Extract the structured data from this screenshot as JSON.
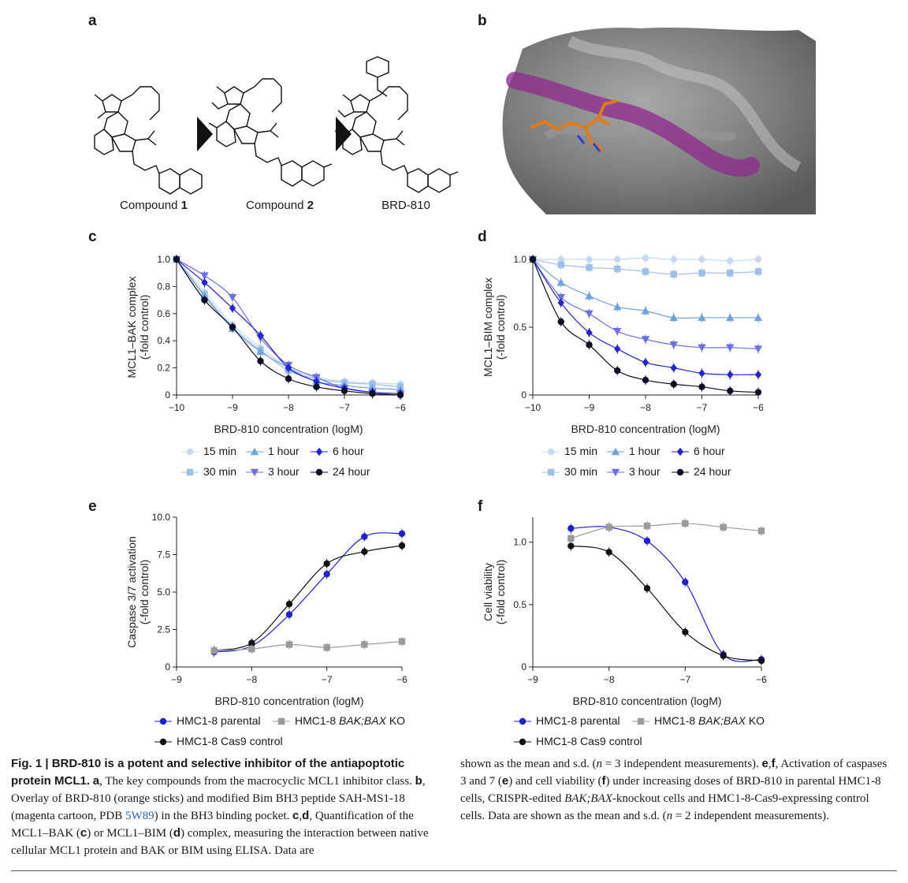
{
  "panels": {
    "a": "a",
    "b": "b",
    "c": "c",
    "d": "d",
    "e": "e",
    "f": "f"
  },
  "compounds": [
    {
      "name": "Compound ",
      "bold": "1"
    },
    {
      "name": "Compound ",
      "bold": "2"
    },
    {
      "name": "BRD-810",
      "bold": ""
    }
  ],
  "colors": {
    "t15": "#c6d9f0",
    "t30": "#9ec0e8",
    "t1h": "#6da3e0",
    "t3h": "#6e6ee6",
    "t6h": "#2323d8",
    "t24h": "#0d0d26",
    "parental": "#1f1fd6",
    "ko": "#9a9a9a",
    "cas9": "#111111"
  },
  "chart_data": [
    {
      "type": "line",
      "id": "c",
      "xlabel": "BRD-810 concentration (logM)",
      "ylabel_line1": "MCL1–BAK complex",
      "ylabel_line2": "(-fold control)",
      "xlim": [
        -10,
        -6
      ],
      "ylim": [
        0,
        1.0
      ],
      "xticks": [
        "−10",
        "−9",
        "−8",
        "−7",
        "−6"
      ],
      "yticks": [
        "0",
        "0.2",
        "0.4",
        "0.6",
        "0.8",
        "1.0"
      ],
      "x": [
        -10,
        -9.5,
        -9,
        -8.5,
        -8,
        -7.5,
        -7,
        -6.5,
        -6
      ],
      "series": [
        {
          "name": "15 min",
          "color": "#c6d9f0",
          "marker": "circle",
          "values": [
            1.0,
            0.76,
            0.52,
            0.35,
            0.2,
            0.13,
            0.1,
            0.09,
            0.08
          ]
        },
        {
          "name": "30 min",
          "color": "#9ec0e8",
          "marker": "square",
          "values": [
            1.0,
            0.74,
            0.5,
            0.33,
            0.18,
            0.12,
            0.09,
            0.08,
            0.06
          ]
        },
        {
          "name": "1 hour",
          "color": "#6da3e0",
          "marker": "triangle-up",
          "values": [
            1.0,
            0.73,
            0.49,
            0.32,
            0.2,
            0.1,
            0.07,
            0.05,
            0.04
          ]
        },
        {
          "name": "3 hour",
          "color": "#6e6ee6",
          "marker": "triangle-down",
          "values": [
            1.0,
            0.88,
            0.72,
            0.42,
            0.22,
            0.13,
            0.05,
            0.02,
            0.01
          ]
        },
        {
          "name": "6 hour",
          "color": "#2323d8",
          "marker": "diamond",
          "values": [
            1.0,
            0.83,
            0.64,
            0.44,
            0.2,
            0.1,
            0.05,
            0.02,
            0.01
          ]
        },
        {
          "name": "24 hour",
          "color": "#0d0d26",
          "marker": "circle",
          "values": [
            1.0,
            0.7,
            0.5,
            0.25,
            0.12,
            0.06,
            0.03,
            0.01,
            0.0
          ]
        }
      ],
      "legend": [
        {
          "name": "15 min",
          "color": "#c6d9f0",
          "marker": "circle"
        },
        {
          "name": "1 hour",
          "color": "#6da3e0",
          "marker": "triangle-up"
        },
        {
          "name": "6 hour",
          "color": "#2323d8",
          "marker": "diamond"
        },
        {
          "name": "30 min",
          "color": "#9ec0e8",
          "marker": "square"
        },
        {
          "name": "3 hour",
          "color": "#6e6ee6",
          "marker": "triangle-down"
        },
        {
          "name": "24 hour",
          "color": "#0d0d26",
          "marker": "circle"
        }
      ]
    },
    {
      "type": "line",
      "id": "d",
      "xlabel": "BRD-810 concentration (logM)",
      "ylabel_line1": "MCL1–BIM complex",
      "ylabel_line2": "(-fold control)",
      "xlim": [
        -10,
        -6
      ],
      "ylim": [
        0,
        1.0
      ],
      "xticks": [
        "−10",
        "−9",
        "−8",
        "−7",
        "−6"
      ],
      "yticks": [
        "0",
        "0.5",
        "1.0"
      ],
      "x": [
        -10,
        -9.5,
        -9,
        -8.5,
        -8,
        -7.5,
        -7,
        -6.5,
        -6
      ],
      "series": [
        {
          "name": "15 min",
          "color": "#c6d9f0",
          "marker": "circle",
          "values": [
            1.0,
            1.0,
            1.0,
            1.0,
            1.01,
            1.0,
            1.0,
            0.99,
            1.0
          ]
        },
        {
          "name": "30 min",
          "color": "#9ec0e8",
          "marker": "square",
          "values": [
            1.0,
            0.96,
            0.94,
            0.93,
            0.91,
            0.89,
            0.9,
            0.9,
            0.91
          ]
        },
        {
          "name": "1 hour",
          "color": "#6da3e0",
          "marker": "triangle-up",
          "values": [
            1.0,
            0.83,
            0.73,
            0.65,
            0.62,
            0.57,
            0.57,
            0.57,
            0.57
          ]
        },
        {
          "name": "3 hour",
          "color": "#6e6ee6",
          "marker": "triangle-down",
          "values": [
            1.0,
            0.72,
            0.6,
            0.47,
            0.41,
            0.37,
            0.35,
            0.35,
            0.34
          ]
        },
        {
          "name": "6 hour",
          "color": "#2323d8",
          "marker": "diamond",
          "values": [
            1.0,
            0.68,
            0.46,
            0.34,
            0.24,
            0.2,
            0.16,
            0.15,
            0.15
          ]
        },
        {
          "name": "24 hour",
          "color": "#0d0d26",
          "marker": "circle",
          "values": [
            1.0,
            0.54,
            0.37,
            0.18,
            0.11,
            0.08,
            0.06,
            0.03,
            0.02
          ]
        }
      ],
      "legend": [
        {
          "name": "15 min",
          "color": "#c6d9f0",
          "marker": "circle"
        },
        {
          "name": "1 hour",
          "color": "#6da3e0",
          "marker": "triangle-up"
        },
        {
          "name": "6 hour",
          "color": "#2323d8",
          "marker": "diamond"
        },
        {
          "name": "30 min",
          "color": "#9ec0e8",
          "marker": "square"
        },
        {
          "name": "3 hour",
          "color": "#6e6ee6",
          "marker": "triangle-down"
        },
        {
          "name": "24 hour",
          "color": "#0d0d26",
          "marker": "circle"
        }
      ]
    },
    {
      "type": "line",
      "id": "e",
      "xlabel": "BRD-810 concentration (logM)",
      "ylabel_line1": "Caspase 3/7 activation",
      "ylabel_line2": "(-fold control)",
      "xlim": [
        -9,
        -6
      ],
      "ylim": [
        0,
        10.0
      ],
      "xticks": [
        "−9",
        "−8",
        "−7",
        "−6"
      ],
      "yticks": [
        "0",
        "2.5",
        "5.0",
        "7.5",
        "10.0"
      ],
      "x": [
        -8.5,
        -8,
        -7.5,
        -7,
        -6.5,
        -6
      ],
      "series": [
        {
          "name": "HMC1-8 parental",
          "color": "#1f1fd6",
          "marker": "circle",
          "values": [
            1.0,
            1.4,
            3.5,
            6.2,
            8.7,
            8.9
          ]
        },
        {
          "name": "HMC1-8 Cas9 control",
          "color": "#111111",
          "marker": "circle",
          "values": [
            1.1,
            1.6,
            4.2,
            6.9,
            7.7,
            8.1
          ]
        },
        {
          "name": "HMC1-8 BAK;BAX KO",
          "color": "#9a9a9a",
          "marker": "square",
          "values": [
            1.1,
            1.2,
            1.5,
            1.3,
            1.5,
            1.7
          ]
        }
      ],
      "legend": [
        {
          "name": "HMC1-8 parental",
          "color": "#1f1fd6",
          "marker": "circle"
        },
        {
          "name": "HMC1-8 ",
          "italic": "BAK;BAX",
          "suffix": " KO",
          "color": "#9a9a9a",
          "marker": "square"
        },
        {
          "name": "HMC1-8 Cas9 control",
          "color": "#111111",
          "marker": "circle"
        }
      ]
    },
    {
      "type": "line",
      "id": "f",
      "xlabel": "BRD-810 concentration (logM)",
      "ylabel_line1": "Cell viability",
      "ylabel_line2": "(-fold control)",
      "xlim": [
        -9,
        -6
      ],
      "ylim": [
        0,
        1.2
      ],
      "xticks": [
        "−9",
        "−8",
        "−7",
        "−6"
      ],
      "yticks": [
        "0",
        "0.5",
        "1.0"
      ],
      "x": [
        -8.5,
        -8,
        -7.5,
        -7,
        -6.5,
        -6
      ],
      "series": [
        {
          "name": "HMC1-8 parental",
          "color": "#1f1fd6",
          "marker": "circle",
          "values": [
            1.11,
            1.12,
            1.01,
            0.68,
            0.1,
            0.06
          ]
        },
        {
          "name": "HMC1-8 Cas9 control",
          "color": "#111111",
          "marker": "circle",
          "values": [
            0.97,
            0.92,
            0.63,
            0.28,
            0.09,
            0.05
          ]
        },
        {
          "name": "HMC1-8 BAK;BAX KO",
          "color": "#9a9a9a",
          "marker": "square",
          "values": [
            1.03,
            1.12,
            1.13,
            1.15,
            1.12,
            1.09
          ]
        }
      ],
      "legend": [
        {
          "name": "HMC1-8 parental",
          "color": "#1f1fd6",
          "marker": "circle"
        },
        {
          "name": "HMC1-8 ",
          "italic": "BAK;BAX",
          "suffix": " KO",
          "color": "#9a9a9a",
          "marker": "square"
        },
        {
          "name": "HMC1-8 Cas9 control",
          "color": "#111111",
          "marker": "circle"
        }
      ]
    }
  ],
  "caption_left": {
    "title": "Fig. 1 | BRD-810 is a potent and selective inhibitor of the antiapoptotic protein MCL1.",
    "a_label": "a",
    "a_text": ", The key compounds from the macrocyclic MCL1 inhibitor class.",
    "b_label": "b",
    "b_text": ", Overlay of BRD-810 (orange sticks) and modified Bim BH3 peptide SAH-MS1-18 (magenta cartoon, PDB ",
    "pdb": "5W89",
    "b_text2": ") in the BH3 binding pocket.",
    "cd_label": "c",
    "cd_sep": ",",
    "d_label": "d",
    "cd_text": ", Quantification of the MCL1–BAK (",
    "c_ref": "c",
    "cd_text2": ") or MCL1–BIM (",
    "d_ref": "d",
    "cd_text3": ") complex, measuring the interaction between native cellular MCL1 protein and BAK or BIM using ELISA. Data are"
  },
  "caption_right": {
    "t1": "shown as the mean and s.d. (",
    "n1": "n",
    "t2": " = 3 independent measurements).",
    "e_label": "e",
    "sep": ",",
    "f_label": "f",
    "t3": ", Activation of caspases 3 and 7 (",
    "e_ref": "e",
    "t4": ") and cell viability (",
    "f_ref": "f",
    "t5": ") under increasing doses of BRD-810 in parental HMC1-8 cells, CRISPR-edited ",
    "bakbax": "BAK;BAX",
    "t6": "-knockout cells and HMC1-8-Cas9-expressing control cells. Data are shown as the mean and s.d. (",
    "n2": "n",
    "t7": " = 2 independent measurements)."
  }
}
